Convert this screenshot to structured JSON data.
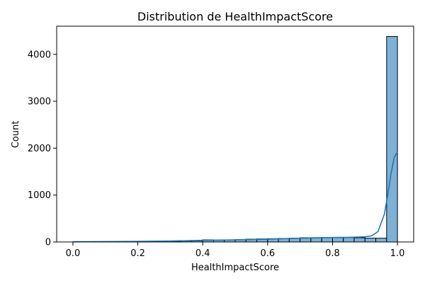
{
  "chart_data": {
    "type": "bar",
    "title": "Distribution de HealthImpactScore",
    "xlabel": "HealthImpactScore",
    "ylabel": "Count",
    "xlim": [
      -0.05,
      1.05
    ],
    "ylim": [
      0,
      4600
    ],
    "xticks": [
      0.0,
      0.2,
      0.4,
      0.6,
      0.8,
      1.0
    ],
    "xtick_labels": [
      "0.0",
      "0.2",
      "0.4",
      "0.6",
      "0.8",
      "1.0"
    ],
    "yticks": [
      0,
      1000,
      2000,
      3000,
      4000
    ],
    "ytick_labels": [
      "0",
      "1000",
      "2000",
      "3000",
      "4000"
    ],
    "bin_width": 0.0333,
    "bins": [
      {
        "x0": 0.0,
        "count": 2
      },
      {
        "x0": 0.0333,
        "count": 3
      },
      {
        "x0": 0.0667,
        "count": 3
      },
      {
        "x0": 0.1,
        "count": 4
      },
      {
        "x0": 0.1333,
        "count": 5
      },
      {
        "x0": 0.1667,
        "count": 6
      },
      {
        "x0": 0.2,
        "count": 8
      },
      {
        "x0": 0.2333,
        "count": 10
      },
      {
        "x0": 0.2667,
        "count": 13
      },
      {
        "x0": 0.3,
        "count": 16
      },
      {
        "x0": 0.3333,
        "count": 20
      },
      {
        "x0": 0.3667,
        "count": 25
      },
      {
        "x0": 0.4,
        "count": 45
      },
      {
        "x0": 0.4333,
        "count": 40
      },
      {
        "x0": 0.4667,
        "count": 45
      },
      {
        "x0": 0.5,
        "count": 50
      },
      {
        "x0": 0.5333,
        "count": 60
      },
      {
        "x0": 0.5667,
        "count": 65
      },
      {
        "x0": 0.6,
        "count": 70
      },
      {
        "x0": 0.6333,
        "count": 75
      },
      {
        "x0": 0.6667,
        "count": 80
      },
      {
        "x0": 0.7,
        "count": 90
      },
      {
        "x0": 0.7333,
        "count": 92
      },
      {
        "x0": 0.7667,
        "count": 95
      },
      {
        "x0": 0.8,
        "count": 95
      },
      {
        "x0": 0.8333,
        "count": 95
      },
      {
        "x0": 0.8667,
        "count": 90
      },
      {
        "x0": 0.9,
        "count": 80
      },
      {
        "x0": 0.9333,
        "count": 80
      },
      {
        "x0": 0.9667,
        "count": 4380
      }
    ],
    "kde": {
      "x": [
        0.0,
        0.1,
        0.2,
        0.3,
        0.4,
        0.5,
        0.6,
        0.7,
        0.8,
        0.85,
        0.9,
        0.92,
        0.94,
        0.96,
        0.97,
        0.98,
        0.99,
        1.0
      ],
      "y": [
        5,
        8,
        12,
        20,
        35,
        45,
        60,
        80,
        95,
        100,
        110,
        130,
        220,
        600,
        1000,
        1450,
        1800,
        1920
      ]
    },
    "colors": {
      "bar_fill": "#7eb1d6",
      "bar_edge": "#000000",
      "kde_line": "#1f77b4"
    }
  }
}
